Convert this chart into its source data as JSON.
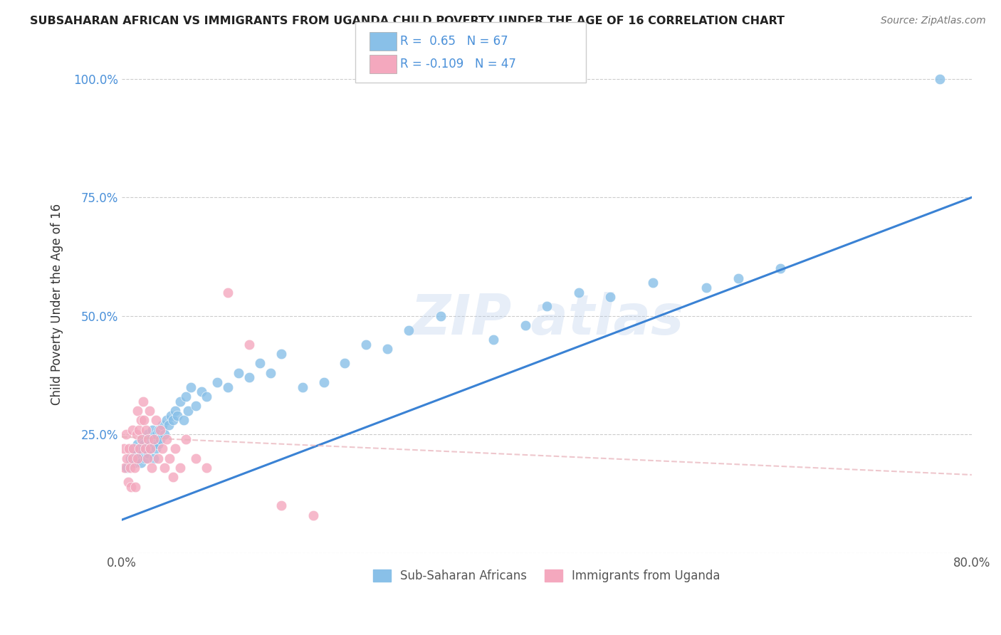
{
  "title": "SUBSAHARAN AFRICAN VS IMMIGRANTS FROM UGANDA CHILD POVERTY UNDER THE AGE OF 16 CORRELATION CHART",
  "source": "Source: ZipAtlas.com",
  "ylabel": "Child Poverty Under the Age of 16",
  "xlim": [
    0.0,
    0.8
  ],
  "ylim": [
    0.0,
    1.05
  ],
  "xtick_positions": [
    0.0,
    0.2,
    0.4,
    0.6,
    0.8
  ],
  "xticklabels": [
    "0.0%",
    "",
    "",
    "",
    "80.0%"
  ],
  "ytick_positions": [
    0.0,
    0.25,
    0.5,
    0.75,
    1.0
  ],
  "yticklabels": [
    "",
    "25.0%",
    "50.0%",
    "75.0%",
    "100.0%"
  ],
  "R_blue": 0.65,
  "N_blue": 67,
  "R_pink": -0.109,
  "N_pink": 47,
  "blue_color": "#89c0e8",
  "pink_color": "#f4a8be",
  "trend_blue": "#3a82d4",
  "trend_pink": "#e8b0b8",
  "legend_label_blue": "Sub-Saharan Africans",
  "legend_label_pink": "Immigrants from Uganda",
  "blue_scatter_x": [
    0.005,
    0.008,
    0.01,
    0.012,
    0.014,
    0.015,
    0.016,
    0.017,
    0.018,
    0.019,
    0.02,
    0.021,
    0.022,
    0.023,
    0.024,
    0.025,
    0.026,
    0.027,
    0.028,
    0.029,
    0.03,
    0.031,
    0.032,
    0.033,
    0.034,
    0.035,
    0.036,
    0.038,
    0.04,
    0.042,
    0.044,
    0.046,
    0.048,
    0.05,
    0.052,
    0.055,
    0.058,
    0.06,
    0.062,
    0.065,
    0.07,
    0.075,
    0.08,
    0.09,
    0.1,
    0.11,
    0.12,
    0.13,
    0.14,
    0.15,
    0.17,
    0.19,
    0.21,
    0.23,
    0.25,
    0.27,
    0.3,
    0.35,
    0.38,
    0.4,
    0.43,
    0.46,
    0.5,
    0.55,
    0.58,
    0.62,
    0.77
  ],
  "blue_scatter_y": [
    0.18,
    0.2,
    0.22,
    0.19,
    0.21,
    0.23,
    0.2,
    0.22,
    0.19,
    0.24,
    0.21,
    0.23,
    0.2,
    0.22,
    0.25,
    0.21,
    0.23,
    0.22,
    0.24,
    0.26,
    0.2,
    0.23,
    0.22,
    0.25,
    0.23,
    0.26,
    0.24,
    0.27,
    0.25,
    0.28,
    0.27,
    0.29,
    0.28,
    0.3,
    0.29,
    0.32,
    0.28,
    0.33,
    0.3,
    0.35,
    0.31,
    0.34,
    0.33,
    0.36,
    0.35,
    0.38,
    0.37,
    0.4,
    0.38,
    0.42,
    0.35,
    0.36,
    0.4,
    0.44,
    0.43,
    0.47,
    0.5,
    0.45,
    0.48,
    0.52,
    0.55,
    0.54,
    0.57,
    0.56,
    0.58,
    0.6,
    1.0
  ],
  "pink_scatter_x": [
    0.002,
    0.003,
    0.004,
    0.005,
    0.006,
    0.007,
    0.008,
    0.009,
    0.01,
    0.01,
    0.011,
    0.012,
    0.013,
    0.014,
    0.015,
    0.015,
    0.016,
    0.017,
    0.018,
    0.019,
    0.02,
    0.021,
    0.022,
    0.023,
    0.024,
    0.025,
    0.026,
    0.027,
    0.028,
    0.03,
    0.032,
    0.034,
    0.036,
    0.038,
    0.04,
    0.042,
    0.045,
    0.048,
    0.05,
    0.055,
    0.06,
    0.07,
    0.08,
    0.1,
    0.12,
    0.15,
    0.18
  ],
  "pink_scatter_y": [
    0.22,
    0.18,
    0.25,
    0.2,
    0.15,
    0.22,
    0.18,
    0.14,
    0.2,
    0.26,
    0.22,
    0.18,
    0.14,
    0.25,
    0.2,
    0.3,
    0.26,
    0.22,
    0.28,
    0.24,
    0.32,
    0.28,
    0.22,
    0.26,
    0.2,
    0.24,
    0.3,
    0.22,
    0.18,
    0.24,
    0.28,
    0.2,
    0.26,
    0.22,
    0.18,
    0.24,
    0.2,
    0.16,
    0.22,
    0.18,
    0.24,
    0.2,
    0.18,
    0.55,
    0.44,
    0.1,
    0.08
  ]
}
